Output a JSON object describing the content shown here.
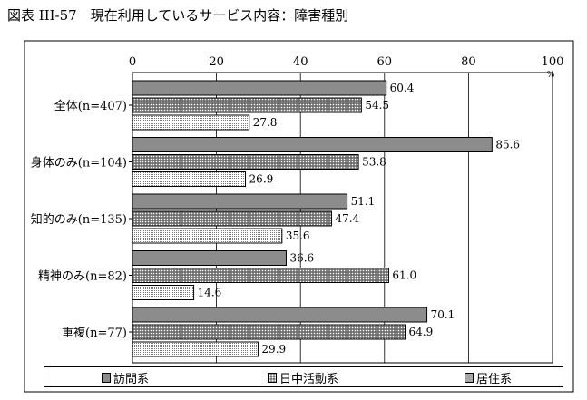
{
  "figure_title": "図表 III-57　現在利用しているサービス内容：障害種別",
  "chart_data": {
    "type": "bar",
    "orientation": "horizontal",
    "title": "図表 III-57　現在利用しているサービス内容：障害種別",
    "unit": "%",
    "xlim": [
      0,
      100
    ],
    "ticks": [
      0,
      20,
      40,
      60,
      80,
      100
    ],
    "grid": true,
    "legend_position": "bottom",
    "categories": [
      "全体(n=407)",
      "身体のみ(n=104)",
      "知的のみ(n=135)",
      "精神のみ(n=82)",
      "重複(n=77)"
    ],
    "series": [
      {
        "name": "訪問系",
        "values": [
          60.4,
          85.6,
          51.1,
          36.6,
          70.1
        ],
        "color": "#8c8c8c"
      },
      {
        "name": "日中活動系",
        "values": [
          54.5,
          53.8,
          47.4,
          61.0,
          64.9
        ],
        "color": "#707070"
      },
      {
        "name": "居住系",
        "values": [
          27.8,
          26.9,
          35.6,
          14.6,
          29.9
        ],
        "color": "#d0d0d0"
      }
    ]
  }
}
